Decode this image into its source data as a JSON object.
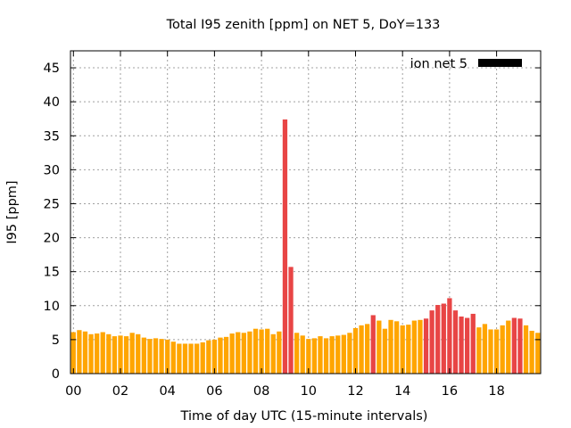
{
  "chart_data": {
    "type": "bar",
    "title": "Total I95 zenith [ppm] on NET 5, DoY=133",
    "xlabel": "Time of day UTC (15-minute intervals)",
    "ylabel": "I95 [ppm]",
    "xlim": [
      0,
      19.75
    ],
    "ylim": [
      0,
      47.5
    ],
    "x_tick_values": [
      0,
      2,
      4,
      6,
      8,
      10,
      12,
      14,
      16,
      18
    ],
    "x_tick_labels": [
      "00",
      "02",
      "04",
      "06",
      "08",
      "10",
      "12",
      "14",
      "16",
      "18"
    ],
    "y_tick_values": [
      0,
      5,
      10,
      15,
      20,
      25,
      30,
      35,
      40,
      45
    ],
    "y_tick_labels": [
      "0",
      "5",
      "10",
      "15",
      "20",
      "25",
      "30",
      "35",
      "40",
      "45"
    ],
    "grid": true,
    "legend": {
      "placement": "top-right",
      "label": "ion net 5",
      "color": "#000000"
    },
    "bar_width_hours": 0.2,
    "interval_hours": 0.25,
    "colors": {
      "normal": "#FFA500",
      "elevated": "#E84545"
    },
    "bars": [
      {
        "x": 0.0,
        "value": 6.1,
        "color": "normal"
      },
      {
        "x": 0.25,
        "value": 6.4,
        "color": "normal"
      },
      {
        "x": 0.5,
        "value": 6.2,
        "color": "normal"
      },
      {
        "x": 0.75,
        "value": 5.8,
        "color": "normal"
      },
      {
        "x": 1.0,
        "value": 5.9,
        "color": "normal"
      },
      {
        "x": 1.25,
        "value": 6.1,
        "color": "normal"
      },
      {
        "x": 1.5,
        "value": 5.8,
        "color": "normal"
      },
      {
        "x": 1.75,
        "value": 5.5,
        "color": "normal"
      },
      {
        "x": 2.0,
        "value": 5.6,
        "color": "normal"
      },
      {
        "x": 2.25,
        "value": 5.5,
        "color": "normal"
      },
      {
        "x": 2.5,
        "value": 6.0,
        "color": "normal"
      },
      {
        "x": 2.75,
        "value": 5.8,
        "color": "normal"
      },
      {
        "x": 3.0,
        "value": 5.3,
        "color": "normal"
      },
      {
        "x": 3.25,
        "value": 5.1,
        "color": "normal"
      },
      {
        "x": 3.5,
        "value": 5.2,
        "color": "normal"
      },
      {
        "x": 3.75,
        "value": 5.1,
        "color": "normal"
      },
      {
        "x": 4.0,
        "value": 5.0,
        "color": "normal"
      },
      {
        "x": 4.25,
        "value": 4.7,
        "color": "normal"
      },
      {
        "x": 4.5,
        "value": 4.4,
        "color": "normal"
      },
      {
        "x": 4.75,
        "value": 4.4,
        "color": "normal"
      },
      {
        "x": 5.0,
        "value": 4.4,
        "color": "normal"
      },
      {
        "x": 5.25,
        "value": 4.4,
        "color": "normal"
      },
      {
        "x": 5.5,
        "value": 4.6,
        "color": "normal"
      },
      {
        "x": 5.75,
        "value": 4.9,
        "color": "normal"
      },
      {
        "x": 6.0,
        "value": 5.0,
        "color": "normal"
      },
      {
        "x": 6.25,
        "value": 5.3,
        "color": "normal"
      },
      {
        "x": 6.5,
        "value": 5.4,
        "color": "normal"
      },
      {
        "x": 6.75,
        "value": 5.9,
        "color": "normal"
      },
      {
        "x": 7.0,
        "value": 6.1,
        "color": "normal"
      },
      {
        "x": 7.25,
        "value": 6.0,
        "color": "normal"
      },
      {
        "x": 7.5,
        "value": 6.2,
        "color": "normal"
      },
      {
        "x": 7.75,
        "value": 6.6,
        "color": "normal"
      },
      {
        "x": 8.0,
        "value": 6.5,
        "color": "normal"
      },
      {
        "x": 8.25,
        "value": 6.6,
        "color": "normal"
      },
      {
        "x": 8.5,
        "value": 5.8,
        "color": "normal"
      },
      {
        "x": 8.75,
        "value": 6.2,
        "color": "normal"
      },
      {
        "x": 9.0,
        "value": 37.4,
        "color": "elevated"
      },
      {
        "x": 9.25,
        "value": 15.7,
        "color": "elevated"
      },
      {
        "x": 9.5,
        "value": 6.0,
        "color": "normal"
      },
      {
        "x": 9.75,
        "value": 5.6,
        "color": "normal"
      },
      {
        "x": 10.0,
        "value": 5.1,
        "color": "normal"
      },
      {
        "x": 10.25,
        "value": 5.2,
        "color": "normal"
      },
      {
        "x": 10.5,
        "value": 5.5,
        "color": "normal"
      },
      {
        "x": 10.75,
        "value": 5.2,
        "color": "normal"
      },
      {
        "x": 11.0,
        "value": 5.5,
        "color": "normal"
      },
      {
        "x": 11.25,
        "value": 5.6,
        "color": "normal"
      },
      {
        "x": 11.5,
        "value": 5.7,
        "color": "normal"
      },
      {
        "x": 11.75,
        "value": 6.0,
        "color": "normal"
      },
      {
        "x": 12.0,
        "value": 6.7,
        "color": "normal"
      },
      {
        "x": 12.25,
        "value": 7.1,
        "color": "normal"
      },
      {
        "x": 12.5,
        "value": 7.3,
        "color": "normal"
      },
      {
        "x": 12.75,
        "value": 8.6,
        "color": "elevated"
      },
      {
        "x": 13.0,
        "value": 7.8,
        "color": "normal"
      },
      {
        "x": 13.25,
        "value": 6.6,
        "color": "normal"
      },
      {
        "x": 13.5,
        "value": 7.9,
        "color": "normal"
      },
      {
        "x": 13.75,
        "value": 7.7,
        "color": "normal"
      },
      {
        "x": 14.0,
        "value": 7.1,
        "color": "normal"
      },
      {
        "x": 14.25,
        "value": 7.2,
        "color": "normal"
      },
      {
        "x": 14.5,
        "value": 7.8,
        "color": "normal"
      },
      {
        "x": 14.75,
        "value": 7.9,
        "color": "normal"
      },
      {
        "x": 15.0,
        "value": 8.1,
        "color": "elevated"
      },
      {
        "x": 15.25,
        "value": 9.3,
        "color": "elevated"
      },
      {
        "x": 15.5,
        "value": 10.1,
        "color": "elevated"
      },
      {
        "x": 15.75,
        "value": 10.3,
        "color": "elevated"
      },
      {
        "x": 16.0,
        "value": 11.1,
        "color": "elevated"
      },
      {
        "x": 16.25,
        "value": 9.3,
        "color": "elevated"
      },
      {
        "x": 16.5,
        "value": 8.4,
        "color": "elevated"
      },
      {
        "x": 16.75,
        "value": 8.2,
        "color": "elevated"
      },
      {
        "x": 17.0,
        "value": 8.8,
        "color": "elevated"
      },
      {
        "x": 17.25,
        "value": 6.8,
        "color": "normal"
      },
      {
        "x": 17.5,
        "value": 7.3,
        "color": "normal"
      },
      {
        "x": 17.75,
        "value": 6.5,
        "color": "normal"
      },
      {
        "x": 18.0,
        "value": 6.5,
        "color": "normal"
      },
      {
        "x": 18.25,
        "value": 7.1,
        "color": "normal"
      },
      {
        "x": 18.5,
        "value": 7.8,
        "color": "normal"
      },
      {
        "x": 18.75,
        "value": 8.2,
        "color": "elevated"
      },
      {
        "x": 19.0,
        "value": 8.1,
        "color": "elevated"
      },
      {
        "x": 19.25,
        "value": 7.1,
        "color": "normal"
      },
      {
        "x": 19.5,
        "value": 6.3,
        "color": "normal"
      },
      {
        "x": 19.75,
        "value": 6.0,
        "color": "normal"
      }
    ]
  }
}
